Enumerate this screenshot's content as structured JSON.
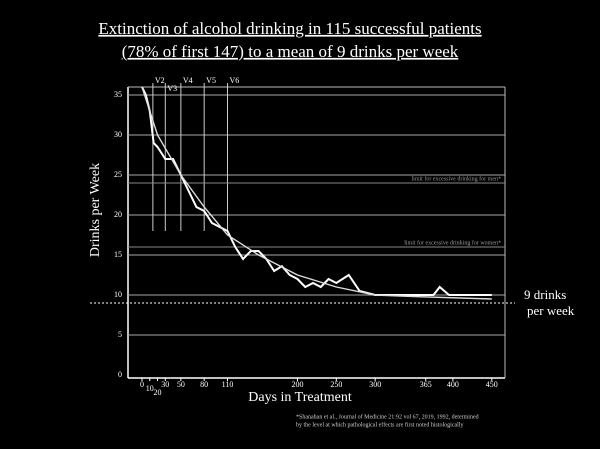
{
  "chart_data": {
    "type": "line",
    "title": [
      "Extinction of alcohol drinking in 115 successful patients",
      "(78% of first 147) to a mean of 9 drinks per week"
    ],
    "y_label": "Drinks per Week",
    "x_label": "Days in Treatment",
    "xlim": [
      -18,
      467
    ],
    "ylim": [
      0,
      36
    ],
    "xticks": [
      0,
      10,
      20,
      30,
      50,
      80,
      110,
      200,
      250,
      300,
      365,
      400,
      450
    ],
    "yticks": [
      0,
      5,
      10,
      15,
      20,
      25,
      30,
      35
    ],
    "grid": true,
    "visits": [
      {
        "label": "V2",
        "x": 14
      },
      {
        "label": "V3",
        "x": 30
      },
      {
        "label": "V4",
        "x": 50
      },
      {
        "label": "V5",
        "x": 80
      },
      {
        "label": "V6",
        "x": 110
      }
    ],
    "thresholds": [
      {
        "label": "limit for excessive drinking for men*",
        "y": 24
      },
      {
        "label": "limit for excessive drinking for women*",
        "y": 16
      }
    ],
    "target": {
      "y": 9,
      "label": [
        "9 drinks",
        "per week"
      ]
    },
    "footnote": [
      "*Shanahan et al., Journal of Medicine 21:92 vol 67, 2019, 1992, determined",
      "by the level at which pathological effects are first noted histologically"
    ],
    "series": [
      {
        "color": "#ffffff",
        "x": [
          0,
          5,
          10,
          15,
          20,
          30,
          40,
          50,
          60,
          70,
          80,
          90,
          100,
          110,
          120,
          130,
          140,
          150,
          160,
          170,
          180,
          190,
          200,
          210,
          220,
          230,
          240,
          250,
          266,
          280,
          300,
          320,
          340,
          360,
          375,
          383,
          395,
          420,
          450
        ],
        "values": [
          36,
          35,
          33,
          29,
          28.5,
          27,
          27,
          25,
          23,
          21,
          20.5,
          19,
          18.5,
          18,
          16,
          14.5,
          15.5,
          15.5,
          14.5,
          13,
          13.6,
          12.5,
          12,
          11,
          11.5,
          11,
          12,
          11.5,
          12.5,
          10.5,
          10,
          10,
          10,
          10,
          10,
          11,
          10,
          10,
          10
        ]
      },
      {
        "color": "#dddddd",
        "x": [
          0,
          20,
          50,
          80,
          110,
          150,
          200,
          250,
          300,
          350,
          450
        ],
        "values": [
          36,
          30,
          25,
          21,
          17.5,
          15,
          12.5,
          11,
          10,
          9.8,
          9.5
        ]
      }
    ]
  }
}
